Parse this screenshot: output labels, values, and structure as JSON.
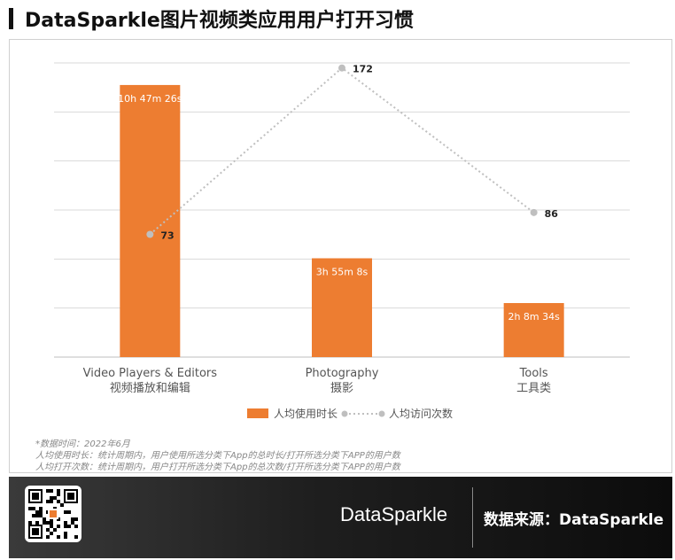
{
  "header": {
    "title": "DataSparkle图片视频类应用用户打开习惯"
  },
  "chart_data": {
    "type": "bar",
    "categories": [
      "Video Players & Editors",
      "Photography",
      "Tools"
    ],
    "categories_cn": [
      "视频播放和编辑",
      "摄影",
      "工具类"
    ],
    "series": [
      {
        "name": "人均使用时长",
        "kind": "bar",
        "color": "#ed7d31",
        "values_seconds": [
          38846,
          14108,
          7714
        ],
        "labels": [
          "10h 47m 26s",
          "3h 55m 8s",
          "2h 8m 34s"
        ]
      },
      {
        "name": "人均访问次数",
        "kind": "line",
        "color": "#bfbfbf",
        "values": [
          73,
          172,
          86
        ],
        "labels": [
          "73",
          "172",
          "86"
        ]
      }
    ],
    "ylim_bar": [
      0,
      42000
    ],
    "ylim_line": [
      0,
      175
    ],
    "grid": true,
    "legend": "bottom"
  },
  "notes": {
    "line1": "*数据时间：2022年6月",
    "line2": "人均使用时长：统计周期内，用户使用所选分类下App的总时长/打开所选分类下APP的用户数",
    "line3": "人均打开次数：统计周期内，用户打开所选分类下App的总次数/打开所选分类下APP的用户数"
  },
  "footer": {
    "brand": "DataSparkle",
    "source": "数据来源：DataSparkle"
  }
}
